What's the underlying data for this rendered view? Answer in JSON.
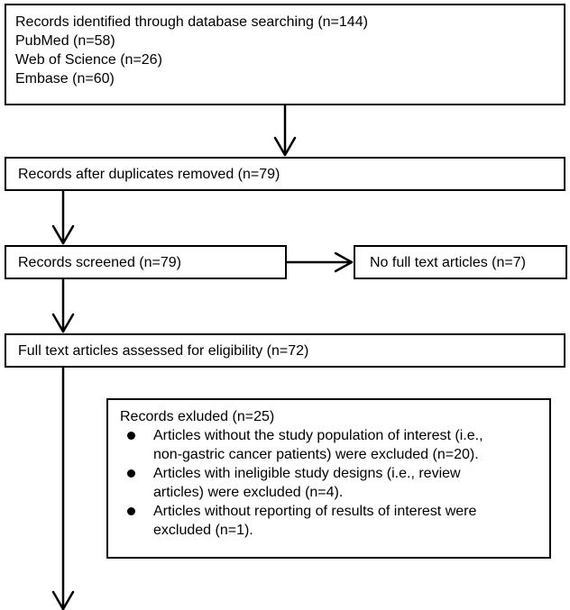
{
  "identified": {
    "title": "Records identified through database searching (n=144)",
    "sources": [
      "PubMed (n=58)",
      "Web of Science (n=26)",
      "Embase (n=60)"
    ]
  },
  "duplicates_removed": "Records after duplicates removed (n=79)",
  "screened": "Records screened (n=79)",
  "no_full_text": "No full text articles (n=7)",
  "full_text_assessed": "Full text articles assessed for eligibility (n=72)",
  "excluded": {
    "title": "Records exluded (n=25)",
    "reasons": [
      {
        "line1": "Articles without the study population of interest (i.e.,",
        "line2": "non-gastric cancer patients) were excluded (n=20)."
      },
      {
        "line1": "Articles with ineligible study designs (i.e., review",
        "line2": "articles) were excluded (n=4)."
      },
      {
        "line1": "Articles without reporting of results of interest were",
        "line2": "excluded (n=1)."
      }
    ]
  }
}
